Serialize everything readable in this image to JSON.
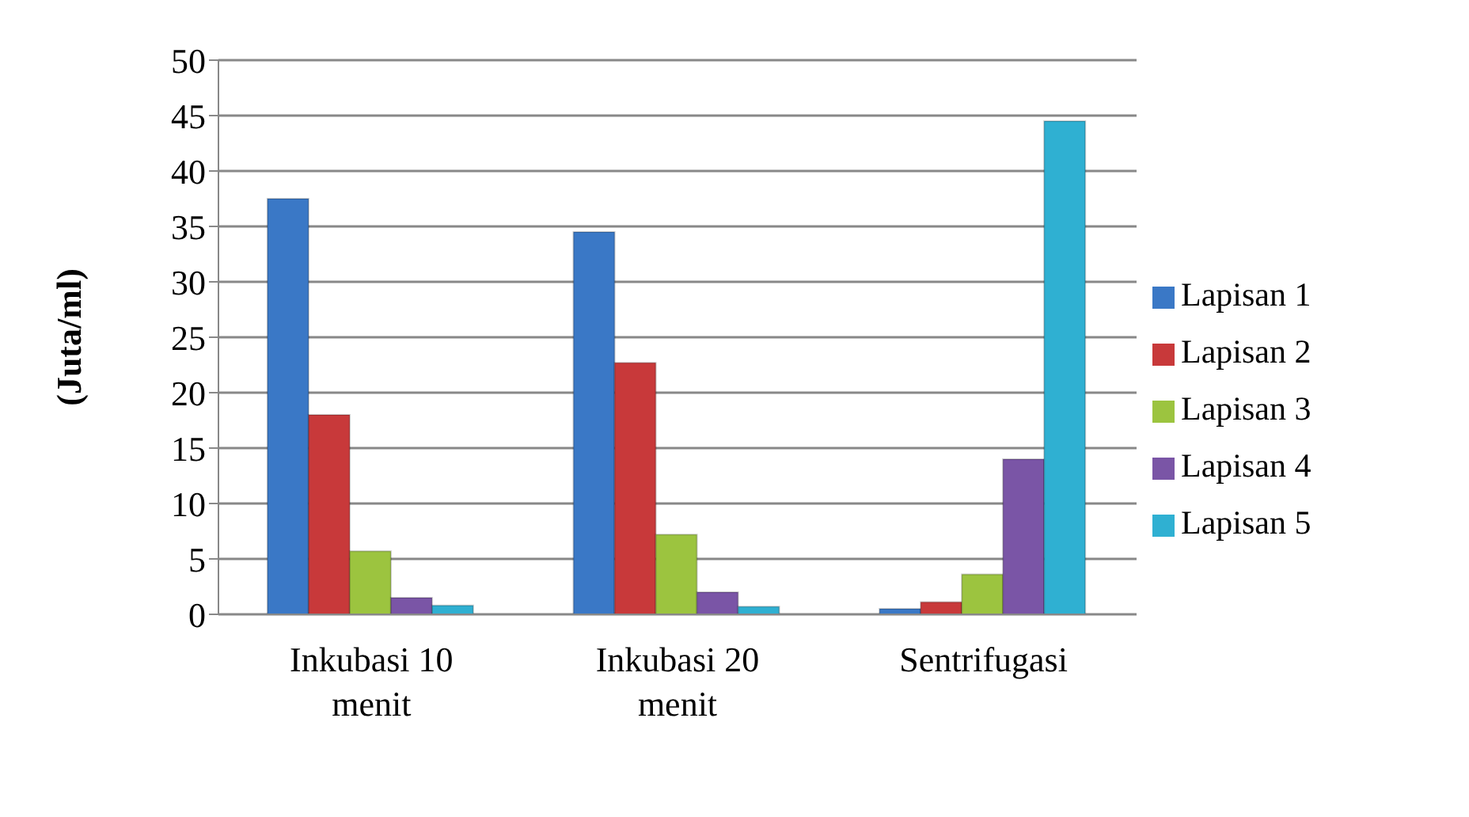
{
  "chart_data": {
    "type": "bar",
    "ylabel": "(Juta/ml)",
    "categories": [
      "Inkubasi 10 menit",
      "Inkubasi 20 menit",
      "Sentrifugasi"
    ],
    "series": [
      {
        "name": "Lapisan 1",
        "color": "#3a78c6",
        "values": [
          37.5,
          34.5,
          0.5
        ]
      },
      {
        "name": "Lapisan 2",
        "color": "#c8393a",
        "values": [
          18,
          22.7,
          1.1
        ]
      },
      {
        "name": "Lapisan 3",
        "color": "#9cc43f",
        "values": [
          5.7,
          7.2,
          3.6
        ]
      },
      {
        "name": "Lapisan 4",
        "color": "#7a55a6",
        "values": [
          1.5,
          2,
          14
        ]
      },
      {
        "name": "Lapisan 5",
        "color": "#2fb0d2",
        "values": [
          0.8,
          0.7,
          44.5
        ]
      }
    ],
    "ylim": [
      0,
      50
    ],
    "yticks": [
      0,
      5,
      10,
      15,
      20,
      25,
      30,
      35,
      40,
      45,
      50
    ],
    "grid": "y",
    "legend": "right"
  }
}
